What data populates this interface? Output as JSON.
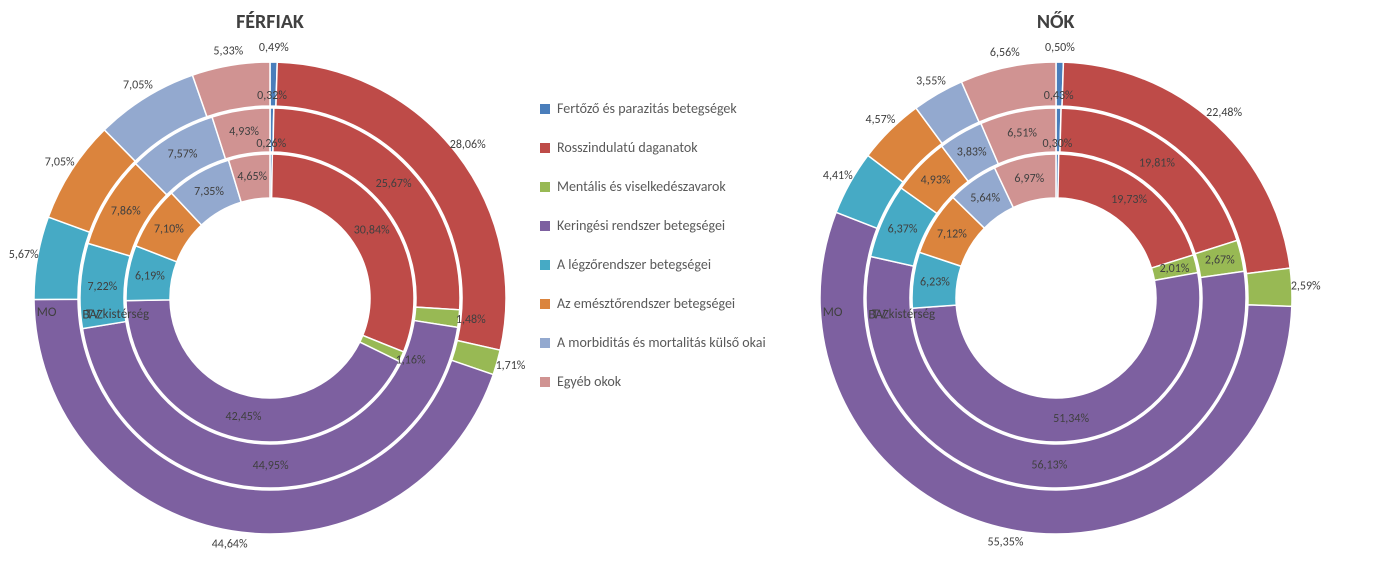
{
  "colors": {
    "series": [
      "#4a7ebb",
      "#be4b48",
      "#98b954",
      "#7d60a0",
      "#46aac5",
      "#db843d",
      "#93a9cf",
      "#d09392"
    ],
    "background": "#ffffff",
    "text": "#404040"
  },
  "legend": {
    "items": [
      "Fertőző és parazitás betegségek",
      "Rosszindulatú daganatok",
      "Mentális és viselkedészavarok",
      "Keringési rendszer betegségei",
      "A légzőrendszer betegségei",
      "Az emésztőrendszer betegségei",
      "A morbiditás és mortalitás külső okai",
      "Egyéb okok"
    ]
  },
  "charts": [
    {
      "title": "FÉRFIAK",
      "type": "multi-ring-donut",
      "ring_labels": [
        "TV kistérség",
        "BAZ",
        "MO"
      ],
      "rings": [
        {
          "name": "TV kistérség",
          "values": [
            0.26,
            30.84,
            1.16,
            42.45,
            6.19,
            7.1,
            7.35,
            4.65
          ],
          "labels": [
            "0,26%",
            "30,84%",
            "1,16%",
            "42,45%",
            "6,19%",
            "7,10%",
            "7,35%",
            "4,65%"
          ]
        },
        {
          "name": "BAZ",
          "values": [
            0.32,
            25.67,
            1.48,
            44.95,
            7.22,
            7.86,
            7.57,
            4.93
          ],
          "labels": [
            "0,32%",
            "25,67%",
            "1,48%",
            "44,95%",
            "7,22%",
            "7,86%",
            "7,57%",
            "4,93%"
          ]
        },
        {
          "name": "MO",
          "values": [
            0.49,
            28.06,
            1.71,
            44.64,
            5.67,
            7.05,
            7.05,
            5.33
          ],
          "labels": [
            "0,49%",
            "28,06%",
            "1,71%",
            "44,64%",
            "5,67%",
            "7,05%",
            "7,05%",
            "5,33%"
          ]
        }
      ]
    },
    {
      "title": "NŐK",
      "type": "multi-ring-donut",
      "ring_labels": [
        "TV kistérség",
        "BAZ",
        "MO"
      ],
      "rings": [
        {
          "name": "TV kistérség",
          "values": [
            0.3,
            19.73,
            2.01,
            51.34,
            6.23,
            7.12,
            5.64,
            6.97
          ],
          "labels": [
            "0,30%",
            "19,73%",
            "2,01%",
            "51,34%",
            "6,23%",
            "7,12%",
            "5,64%",
            "6,97%"
          ]
        },
        {
          "name": "BAZ",
          "values": [
            0.43,
            19.81,
            2.67,
            56.13,
            6.37,
            4.93,
            3.83,
            6.51
          ],
          "labels": [
            "0,43%",
            "19,81%",
            "2,67%",
            "56,13%",
            "6,37%",
            "4,93%",
            "3,83%",
            "6,51%"
          ]
        },
        {
          "name": "MO",
          "values": [
            0.5,
            22.48,
            2.59,
            55.35,
            4.41,
            4.57,
            3.55,
            6.56
          ],
          "labels": [
            "0,50%",
            "22,48%",
            "2,59%",
            "55,35%",
            "4,41%",
            "4,57%",
            "3,55%",
            "6,56%"
          ]
        }
      ]
    }
  ],
  "chart_style": {
    "inner_radius": 100,
    "ring_thickness": 46,
    "svg_size": 520,
    "title_fontsize": 20,
    "label_fontsize": 12,
    "legend_fontsize": 14
  }
}
